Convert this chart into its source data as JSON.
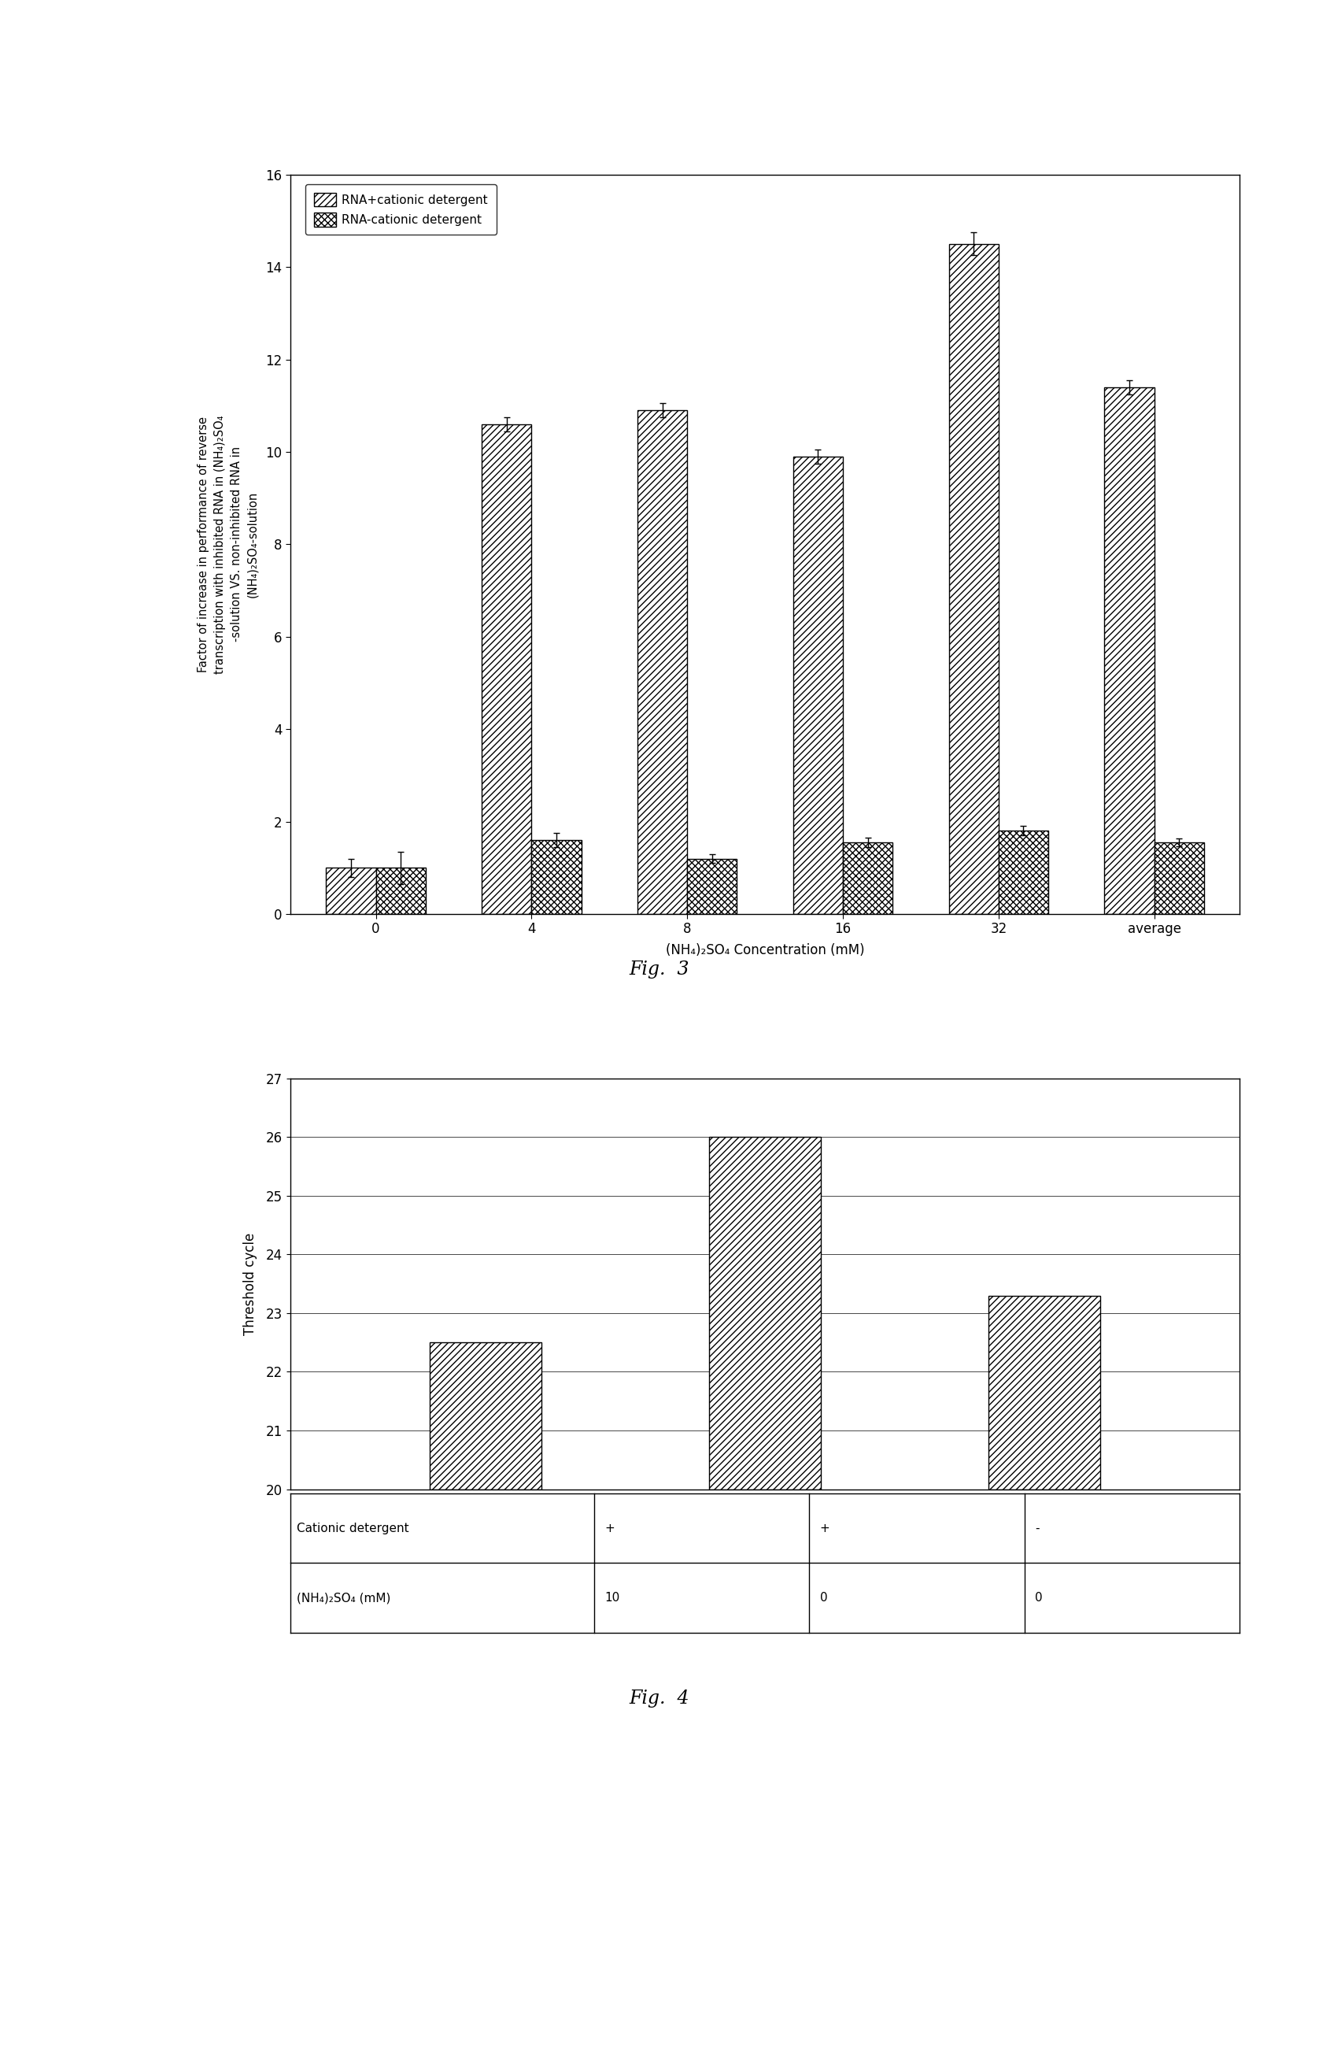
{
  "fig3": {
    "categories": [
      "0",
      "4",
      "8",
      "16",
      "32",
      "average"
    ],
    "series1_values": [
      1.0,
      10.6,
      10.9,
      9.9,
      14.5,
      11.4
    ],
    "series1_errors": [
      0.2,
      0.15,
      0.15,
      0.15,
      0.25,
      0.15
    ],
    "series2_values": [
      1.0,
      1.6,
      1.2,
      1.55,
      1.8,
      1.55
    ],
    "series2_errors": [
      0.35,
      0.15,
      0.1,
      0.1,
      0.1,
      0.08
    ],
    "series1_label": "RNA+cationic detergent",
    "series2_label": "RNA-cationic detergent",
    "series1_hatch": "////",
    "series2_hatch": "xxxx",
    "ylim": [
      0,
      16
    ],
    "yticks": [
      0,
      2,
      4,
      6,
      8,
      10,
      12,
      14,
      16
    ],
    "ylabel_line1": "Factor of increase in performance of reverse",
    "ylabel_line2": "transcription with inhibited RNA in (NH₄)₂SO₄",
    "ylabel_line3": "-solution VS. non-inhibited RNA in",
    "ylabel_line4": "(NH₄)₂SO₄-solution",
    "xlabel": "(NH₄)₂SO₄ Concentration (mM)",
    "caption": "Fig.  3",
    "bar_width": 0.32,
    "bar_color": "white",
    "edge_color": "black"
  },
  "fig4": {
    "values": [
      22.5,
      26.0,
      23.3
    ],
    "hatch": "////",
    "bar_color": "white",
    "edge_color": "black",
    "ylim": [
      20,
      27
    ],
    "yticks": [
      20,
      21,
      22,
      23,
      24,
      25,
      26,
      27
    ],
    "ylabel": "Threshold cycle",
    "caption": "Fig.  4",
    "table_row1_label": "Cationic detergent",
    "table_row2_label": "(NH₄)₂SO₄ (mM)",
    "table_row1_values": [
      "+",
      "+",
      "-"
    ],
    "table_row2_values": [
      "10",
      "0",
      "0"
    ],
    "bar_width": 0.4
  },
  "background_color": "#ffffff",
  "text_color": "#000000"
}
